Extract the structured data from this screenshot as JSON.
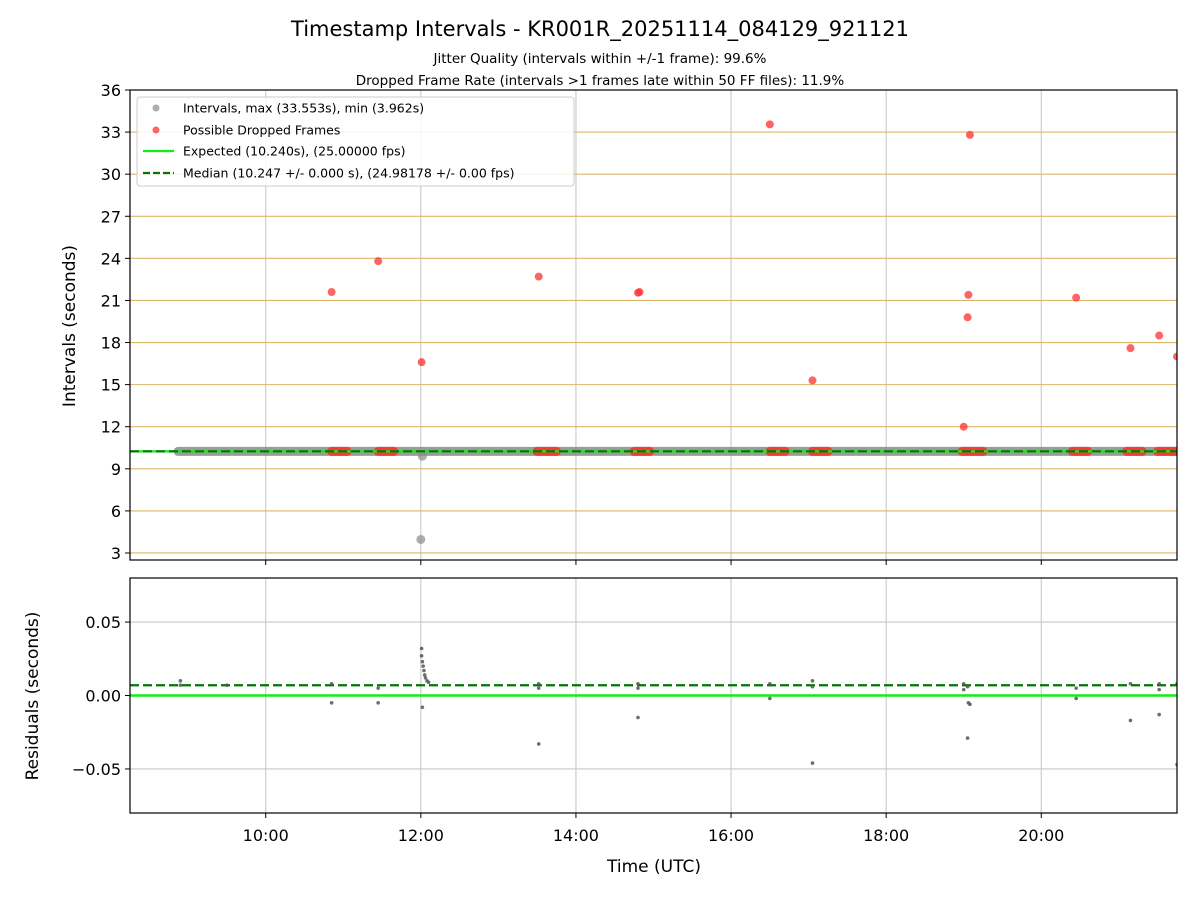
{
  "chart_data": {
    "title": "Timestamp Intervals - KR001R_20251114_084129_921121",
    "subtitle1": "Jitter Quality (intervals within +/-1 frame): 99.6%",
    "subtitle2": "Dropped Frame Rate (intervals >1 frames late within 50 FF files): 11.9%",
    "xlabel": "Time (UTC)",
    "xlim": [
      8.25,
      21.75
    ],
    "xticks": [
      10,
      12,
      14,
      16,
      18,
      20
    ],
    "xtick_labels": [
      "10:00",
      "12:00",
      "14:00",
      "16:00",
      "18:00",
      "20:00"
    ],
    "top": {
      "type": "scatter",
      "ylabel": "Intervals (seconds)",
      "ylim": [
        2.5,
        36
      ],
      "yticks": [
        3,
        6,
        9,
        12,
        15,
        18,
        21,
        24,
        27,
        30,
        33,
        36
      ],
      "ytick_labels": [
        "3",
        "6",
        "9",
        "12",
        "15",
        "18",
        "21",
        "24",
        "27",
        "30",
        "33",
        "36"
      ],
      "hgrid": [
        3,
        6,
        9,
        12,
        15,
        18,
        21,
        24,
        27,
        30,
        33
      ],
      "expected": 10.24,
      "median": 10.247,
      "interval_band": {
        "x_start": 8.87,
        "x_end": 21.75,
        "value": 10.24
      },
      "intervals": [
        {
          "x": 12.0,
          "y": 3.962
        },
        {
          "x": 12.02,
          "y": 9.9
        }
      ],
      "dropped_clusters": [
        [
          10.85,
          11.05
        ],
        [
          11.45,
          11.65
        ],
        [
          13.5,
          13.75
        ],
        [
          14.75,
          14.95
        ],
        [
          16.5,
          16.7
        ],
        [
          17.05,
          17.25
        ],
        [
          18.98,
          19.25
        ],
        [
          20.4,
          20.6
        ],
        [
          21.1,
          21.3
        ],
        [
          21.5,
          21.75
        ]
      ],
      "dropped_value": 10.24,
      "dropped": [
        {
          "x": 10.85,
          "y": 21.6
        },
        {
          "x": 11.45,
          "y": 23.8
        },
        {
          "x": 12.01,
          "y": 16.6
        },
        {
          "x": 13.52,
          "y": 22.7
        },
        {
          "x": 14.8,
          "y": 21.55
        },
        {
          "x": 14.82,
          "y": 21.6
        },
        {
          "x": 16.5,
          "y": 33.55
        },
        {
          "x": 17.05,
          "y": 15.3
        },
        {
          "x": 19.0,
          "y": 12.0
        },
        {
          "x": 19.05,
          "y": 19.8
        },
        {
          "x": 19.06,
          "y": 21.4
        },
        {
          "x": 19.08,
          "y": 32.8
        },
        {
          "x": 20.45,
          "y": 21.2
        },
        {
          "x": 21.15,
          "y": 17.6
        },
        {
          "x": 21.52,
          "y": 18.5
        },
        {
          "x": 21.75,
          "y": 17.0
        }
      ],
      "legend": [
        "Intervals, max (33.553s), min (3.962s)",
        "Possible Dropped Frames",
        "Expected (10.240s), (25.00000 fps)",
        "Median (10.247 +/- 0.000 s), (24.98178 +/- 0.00 fps)"
      ]
    },
    "bottom": {
      "type": "scatter",
      "ylabel": "Residuals (seconds)",
      "ylim": [
        -0.08,
        0.08
      ],
      "yticks": [
        -0.05,
        0.0,
        0.05
      ],
      "ytick_labels": [
        "−0.05",
        "0.00",
        "0.05"
      ],
      "hgrid": [
        -0.05,
        0.0,
        0.05
      ],
      "expected_residual": 0.0,
      "median_residual": 0.007,
      "residuals": [
        {
          "x": 8.9,
          "y": 0.007
        },
        {
          "x": 8.9,
          "y": 0.01
        },
        {
          "x": 9.5,
          "y": 0.007
        },
        {
          "x": 10.85,
          "y": 0.008
        },
        {
          "x": 10.85,
          "y": -0.005
        },
        {
          "x": 11.45,
          "y": 0.005
        },
        {
          "x": 11.45,
          "y": -0.005
        },
        {
          "x": 12.01,
          "y": 0.032
        },
        {
          "x": 12.01,
          "y": 0.027
        },
        {
          "x": 12.02,
          "y": 0.023
        },
        {
          "x": 12.03,
          "y": 0.02
        },
        {
          "x": 12.04,
          "y": 0.017
        },
        {
          "x": 12.05,
          "y": 0.014
        },
        {
          "x": 12.06,
          "y": 0.012
        },
        {
          "x": 12.08,
          "y": 0.01
        },
        {
          "x": 12.1,
          "y": 0.009
        },
        {
          "x": 12.02,
          "y": -0.008
        },
        {
          "x": 13.52,
          "y": 0.008
        },
        {
          "x": 13.52,
          "y": 0.005
        },
        {
          "x": 13.52,
          "y": -0.033
        },
        {
          "x": 14.8,
          "y": 0.008
        },
        {
          "x": 14.8,
          "y": 0.005
        },
        {
          "x": 14.8,
          "y": -0.015
        },
        {
          "x": 16.5,
          "y": 0.008
        },
        {
          "x": 16.5,
          "y": -0.002
        },
        {
          "x": 17.05,
          "y": 0.01
        },
        {
          "x": 17.05,
          "y": 0.006
        },
        {
          "x": 17.05,
          "y": -0.046
        },
        {
          "x": 19.0,
          "y": 0.008
        },
        {
          "x": 19.0,
          "y": 0.004
        },
        {
          "x": 19.05,
          "y": 0.006
        },
        {
          "x": 19.06,
          "y": -0.005
        },
        {
          "x": 19.08,
          "y": -0.006
        },
        {
          "x": 19.05,
          "y": -0.029
        },
        {
          "x": 20.45,
          "y": 0.005
        },
        {
          "x": 20.45,
          "y": -0.002
        },
        {
          "x": 21.15,
          "y": 0.008
        },
        {
          "x": 21.15,
          "y": -0.017
        },
        {
          "x": 21.52,
          "y": 0.008
        },
        {
          "x": 21.52,
          "y": 0.004
        },
        {
          "x": 21.52,
          "y": -0.013
        },
        {
          "x": 21.75,
          "y": 0.008
        },
        {
          "x": 21.75,
          "y": -0.047
        }
      ]
    },
    "colors": {
      "expected": "#11ee11",
      "median": "#007700",
      "dropped": "#ff3030",
      "intervals": "#8a8a8a",
      "residual": "#555555",
      "hgrid_top": "#ddb768",
      "grid": "#c8c8c8"
    }
  }
}
